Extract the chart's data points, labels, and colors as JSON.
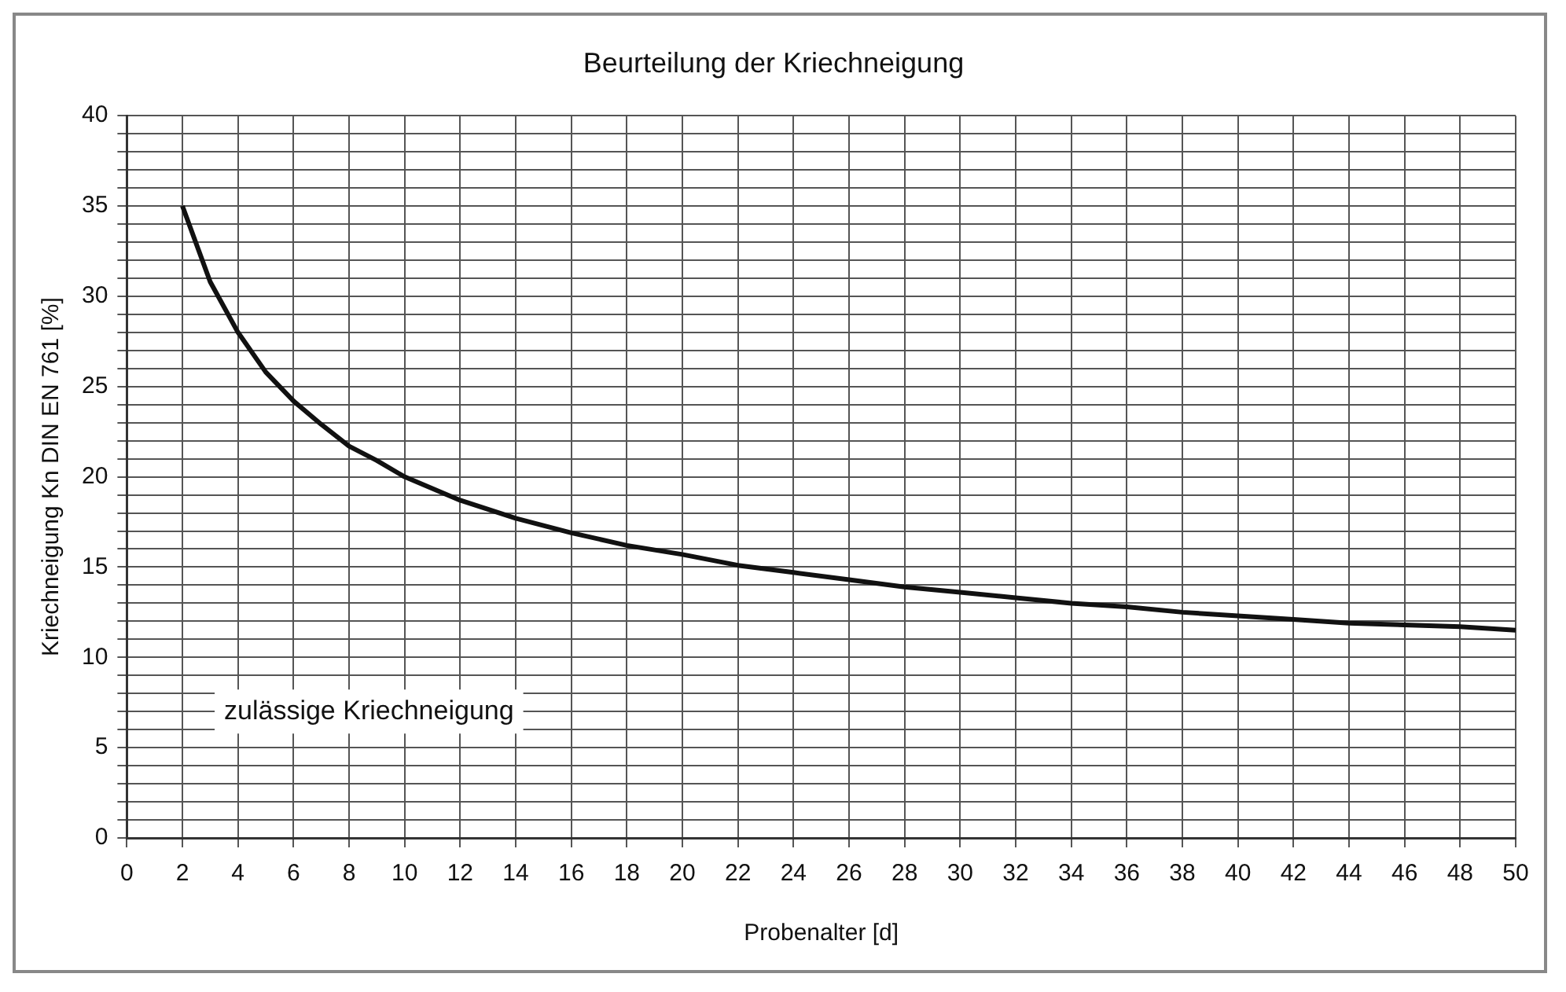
{
  "chart_data": {
    "type": "line",
    "title": "Beurteilung der Kriechneigung",
    "xlabel": "Probenalter [d]",
    "ylabel": "Kriechneigung Kn DIN EN 761 [%]",
    "x": [
      2,
      3,
      4,
      5,
      6,
      7,
      8,
      9,
      10,
      12,
      14,
      16,
      18,
      20,
      22,
      24,
      26,
      28,
      30,
      32,
      34,
      36,
      38,
      40,
      42,
      44,
      46,
      48,
      50
    ],
    "series": [
      {
        "color": "#111111",
        "values": [
          35,
          30.8,
          28,
          25.8,
          24.2,
          22.9,
          21.7,
          20.9,
          20,
          18.7,
          17.7,
          16.9,
          16.2,
          15.7,
          15.1,
          14.7,
          14.3,
          13.9,
          13.6,
          13.3,
          13,
          12.8,
          12.5,
          12.3,
          12.1,
          11.9,
          11.8,
          11.7,
          11.5
        ]
      }
    ],
    "xlim": [
      0,
      50
    ],
    "xticks": [
      0,
      2,
      4,
      6,
      8,
      10,
      12,
      14,
      16,
      18,
      20,
      22,
      24,
      26,
      28,
      30,
      32,
      34,
      36,
      38,
      40,
      42,
      44,
      46,
      48,
      50
    ],
    "ylim": [
      0,
      40
    ],
    "yticks": [
      0,
      {
        "value": 1,
        "label": null
      },
      {
        "value": 2,
        "label": null
      },
      {
        "value": 3,
        "label": null
      },
      {
        "value": 4,
        "label": null
      },
      5,
      {
        "value": 6,
        "label": null
      },
      {
        "value": 7,
        "label": null
      },
      {
        "value": 8,
        "label": null
      },
      {
        "value": 9,
        "label": null
      },
      10,
      {
        "value": 11,
        "label": null
      },
      {
        "value": 12,
        "label": null
      },
      {
        "value": 13,
        "label": null
      },
      {
        "value": 14,
        "label": null
      },
      15,
      {
        "value": 16,
        "label": null
      },
      {
        "value": 17,
        "label": null
      },
      {
        "value": 18,
        "label": null
      },
      {
        "value": 19,
        "label": null
      },
      20,
      {
        "value": 21,
        "label": null
      },
      {
        "value": 22,
        "label": null
      },
      {
        "value": 23,
        "label": null
      },
      {
        "value": 24,
        "label": null
      },
      25,
      {
        "value": 26,
        "label": null
      },
      {
        "value": 27,
        "label": null
      },
      {
        "value": 28,
        "label": null
      },
      {
        "value": 29,
        "label": null
      },
      30,
      {
        "value": 31,
        "label": null
      },
      {
        "value": 32,
        "label": null
      },
      {
        "value": 33,
        "label": null
      },
      {
        "value": 34,
        "label": null
      },
      35,
      {
        "value": 36,
        "label": null
      },
      {
        "value": 37,
        "label": null
      },
      {
        "value": 38,
        "label": null
      },
      {
        "value": 39,
        "label": null
      },
      40
    ],
    "grid": true,
    "legend": false,
    "marker": "none",
    "line_style": "solid",
    "annotations": [
      "zulässige Kriechneigung"
    ]
  }
}
